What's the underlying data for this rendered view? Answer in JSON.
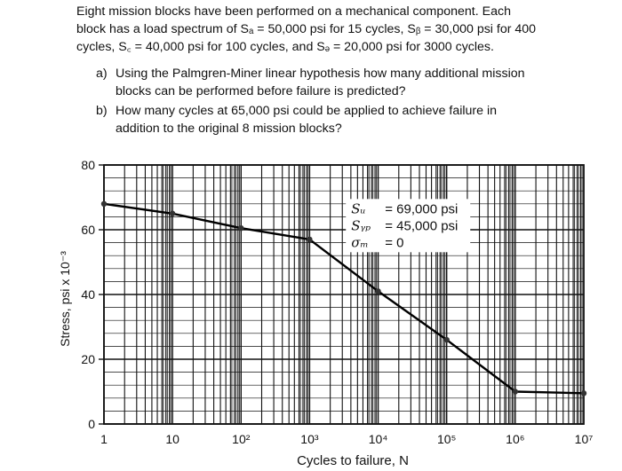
{
  "problem": {
    "intro": "Eight mission blocks have been performed on a mechanical component. Each block has a load spectrum of Sₐ = 50,000 psi for 15 cycles, S_b = 30,000 psi for 400 cycles, S_c = 40,000 psi for 100 cycles, and S_d = 20,000 psi for 3000 cycles.",
    "intro_lines": [
      "Eight mission blocks have been performed on a mechanical component.  Each",
      "block has a load spectrum of Sₐ = 50,000 psi for 15 cycles, Sᵦ = 30,000 psi for 400",
      "cycles, S꜀ = 40,000 psi for 100 cycles, and Sₔ = 20,000 psi for 3000 cycles."
    ],
    "parts": [
      {
        "label": "a)",
        "lines": [
          "Using the Palmgren-Miner linear hypothesis how many additional mission",
          "blocks can be performed before failure is predicted?"
        ]
      },
      {
        "label": "b)",
        "lines": [
          "How many cycles at 65,000 psi could be applied to achieve failure in",
          "addition to the original 8 mission blocks?"
        ]
      }
    ]
  },
  "chart_data": {
    "type": "line",
    "xscale": "log",
    "xlabel": "Cycles to failure, N",
    "ylabel": "Stress, psi x 10⁻³",
    "xlim": [
      1,
      10000000
    ],
    "ylim": [
      0,
      80
    ],
    "x_ticks": [
      "1",
      "10",
      "10²",
      "10³",
      "10⁴",
      "10⁵",
      "10⁶",
      "10⁷"
    ],
    "y_ticks": [
      "0",
      "20",
      "40",
      "60",
      "80"
    ],
    "grid": true,
    "series": [
      {
        "x": [
          1,
          10,
          100,
          1000,
          10000,
          100000,
          1000000,
          10000000
        ],
        "y": [
          68,
          65,
          60.5,
          57,
          41,
          26,
          10,
          9.5
        ]
      }
    ],
    "annotation": {
      "lines": [
        {
          "symbol": "Sᵤ",
          "value": "= 69,000 psi"
        },
        {
          "symbol": "Sᵧₚ",
          "value": "= 45,000 psi"
        },
        {
          "symbol": "σₘ",
          "value": "= 0"
        }
      ]
    }
  }
}
